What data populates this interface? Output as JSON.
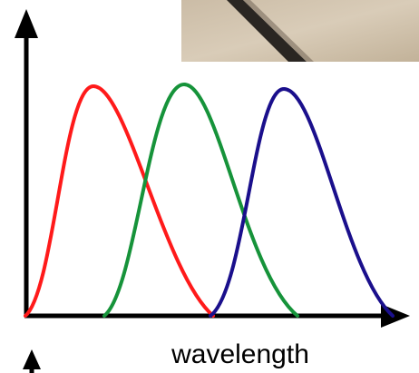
{
  "axis_label": "wavelength"
}
